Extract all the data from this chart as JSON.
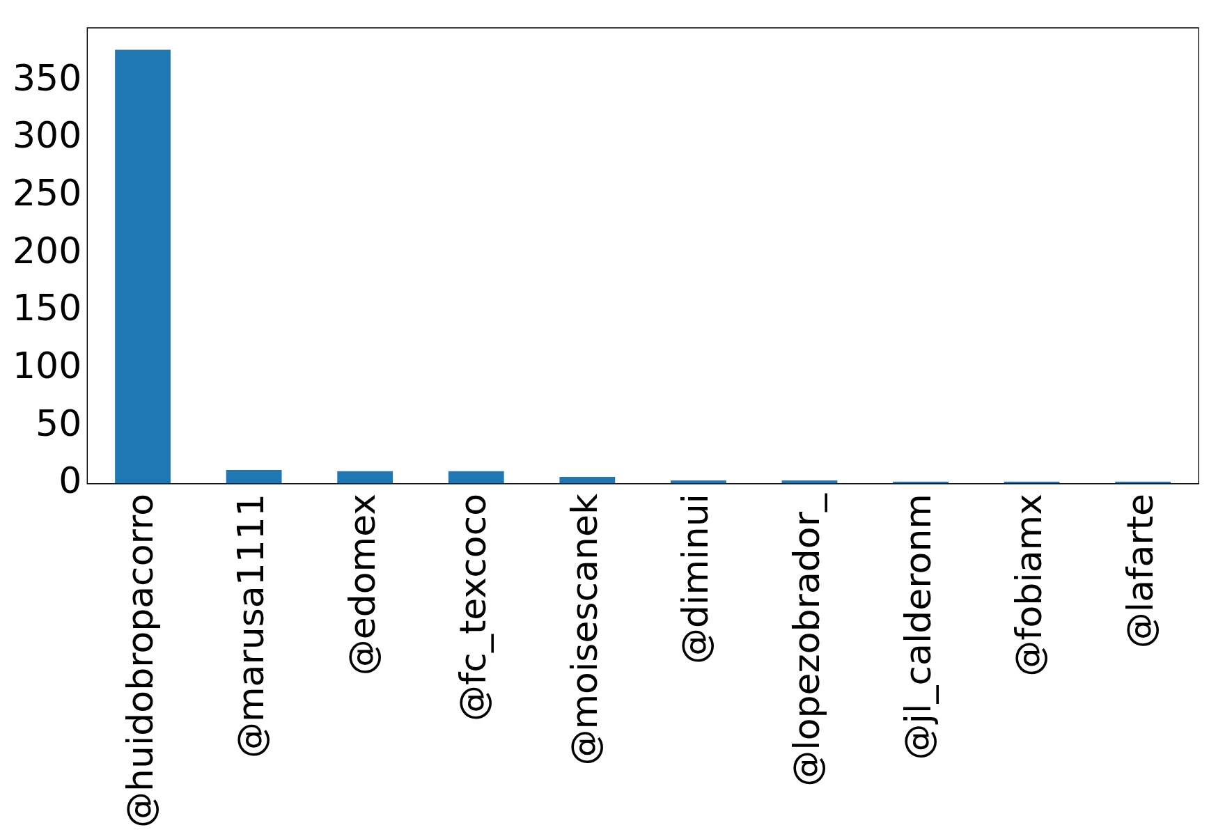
{
  "chart_data": {
    "type": "bar",
    "categories": [
      "@huidobropacorro",
      "@marusa1111",
      "@edomex",
      "@fc_texcoco",
      "@moisescanek",
      "@diminui",
      "@lopezobrador_",
      "@jl_calderonm",
      "@fobiamx",
      "@lafarte"
    ],
    "values": [
      377,
      12,
      11,
      11,
      6,
      3,
      3,
      2,
      2,
      2
    ],
    "color": "#1f77b4",
    "ylim": [
      0,
      396
    ],
    "yticks": [
      0,
      50,
      100,
      150,
      200,
      250,
      300,
      350
    ],
    "grid": false,
    "legend": false
  }
}
